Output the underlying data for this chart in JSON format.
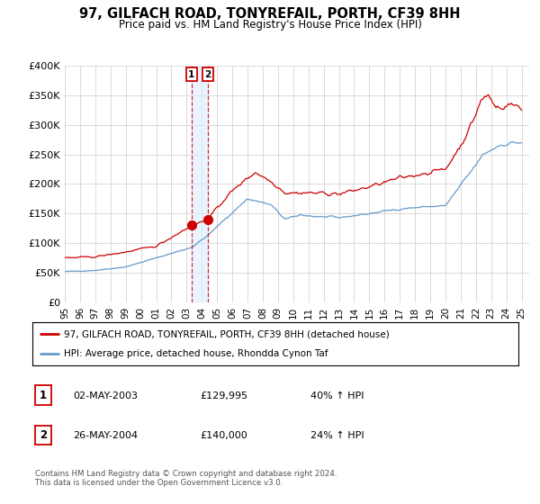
{
  "title": "97, GILFACH ROAD, TONYREFAIL, PORTH, CF39 8HH",
  "subtitle": "Price paid vs. HM Land Registry's House Price Index (HPI)",
  "ylim": [
    0,
    400000
  ],
  "ytick_vals": [
    0,
    50000,
    100000,
    150000,
    200000,
    250000,
    300000,
    350000,
    400000
  ],
  "ytick_labels": [
    "£0",
    "£50K",
    "£100K",
    "£150K",
    "£200K",
    "£250K",
    "£300K",
    "£350K",
    "£400K"
  ],
  "start_year": 1995,
  "end_year": 2025,
  "legend_line1": "97, GILFACH ROAD, TONYREFAIL, PORTH, CF39 8HH (detached house)",
  "legend_line2": "HPI: Average price, detached house, Rhondda Cynon Taf",
  "red_color": "#cc0000",
  "blue_color": "#6699cc",
  "blue_fill_color": "#ddeeff",
  "transaction1_date": 2003.33,
  "transaction1_price": 129995,
  "transaction2_date": 2004.4,
  "transaction2_price": 140000,
  "table_row1": [
    "1",
    "02-MAY-2003",
    "£129,995",
    "40% ↑ HPI"
  ],
  "table_row2": [
    "2",
    "26-MAY-2004",
    "£140,000",
    "24% ↑ HPI"
  ],
  "footnote": "Contains HM Land Registry data © Crown copyright and database right 2024.\nThis data is licensed under the Open Government Licence v3.0.",
  "background_color": "#ffffff",
  "grid_color": "#cccccc"
}
